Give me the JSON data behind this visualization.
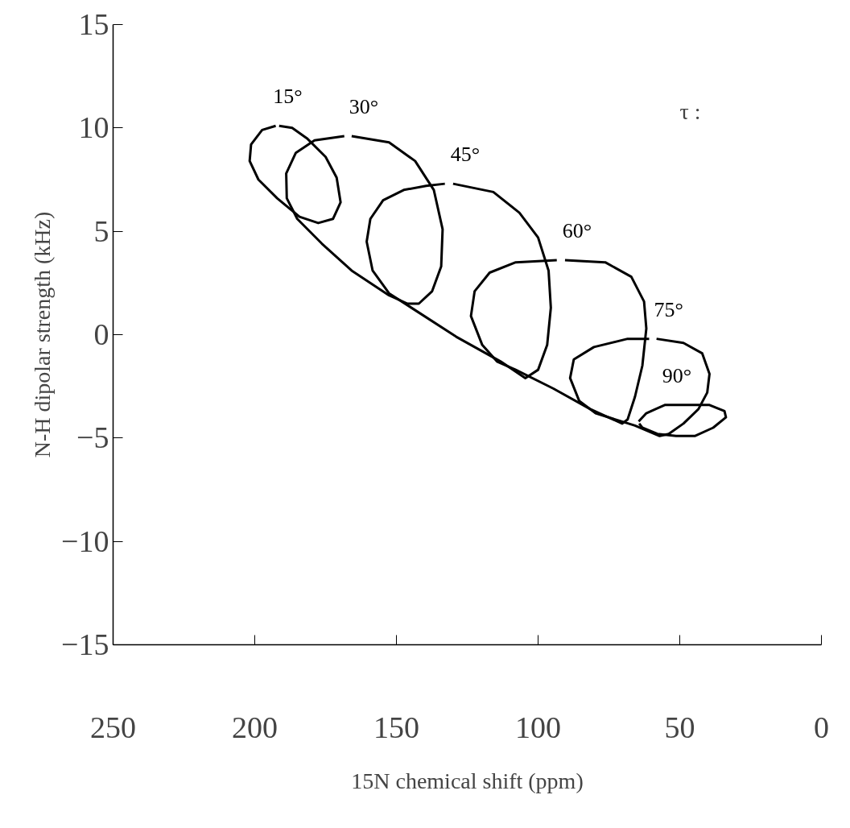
{
  "chart_data": {
    "type": "line",
    "xlabel": "15N chemical shift (ppm)",
    "ylabel": "N-H dipolar strength (kHz)",
    "xlim": [
      250,
      0
    ],
    "ylim": [
      -15,
      15
    ],
    "xticks": [
      250,
      200,
      150,
      100,
      50,
      0
    ],
    "yticks": [
      -15,
      -10,
      -5,
      0,
      5,
      10,
      15
    ],
    "grid": false,
    "series": [
      {
        "name": "15°",
        "color": "#000000",
        "x": [
          192.6,
          197.4,
          201.3,
          201.8,
          198.7,
          192.1,
          184.2,
          177.6,
          172.4,
          169.7,
          171.1,
          175.0,
          181.6,
          186.8,
          191.4
        ],
        "values": [
          10.1,
          9.9,
          9.2,
          8.4,
          7.5,
          6.6,
          5.7,
          5.4,
          5.6,
          6.4,
          7.6,
          8.6,
          9.5,
          10.0,
          10.1
        ]
      },
      {
        "name": "30°",
        "color": "#000000",
        "x": [
          165.8,
          152.6,
          143.4,
          136.8,
          133.7,
          134.2,
          137.4,
          142.1,
          146.1,
          152.6,
          165.8,
          176.3,
          185.0,
          188.7,
          188.9,
          185.5,
          178.9,
          168.4
        ],
        "values": [
          9.6,
          9.3,
          8.4,
          7.0,
          5.1,
          3.3,
          2.1,
          1.5,
          1.5,
          1.9,
          3.1,
          4.4,
          5.6,
          6.6,
          7.8,
          8.8,
          9.4,
          9.6
        ]
      },
      {
        "name": "45°",
        "color": "#000000",
        "x": [
          130.0,
          115.8,
          106.6,
          100.0,
          96.3,
          95.5,
          96.8,
          100.0,
          104.5,
          113.2,
          128.9,
          144.7,
          152.6,
          158.4,
          160.5,
          159.2,
          154.7,
          147.4,
          139.5,
          132.9
        ],
        "values": [
          7.3,
          6.9,
          5.9,
          4.7,
          3.1,
          1.3,
          -0.5,
          -1.7,
          -2.1,
          -1.3,
          -0.1,
          1.3,
          2.0,
          3.1,
          4.5,
          5.6,
          6.5,
          7.0,
          7.2,
          7.3
        ]
      },
      {
        "name": "60°",
        "color": "#000000",
        "x": [
          90.5,
          76.3,
          67.1,
          62.6,
          61.8,
          63.2,
          65.8,
          68.4,
          70.3,
          81.6,
          94.7,
          107.9,
          114.5,
          119.7,
          123.7,
          122.4,
          117.1,
          107.9,
          93.4
        ],
        "values": [
          3.6,
          3.5,
          2.8,
          1.6,
          0.3,
          -1.5,
          -3.0,
          -4.1,
          -4.3,
          -3.6,
          -2.6,
          -1.7,
          -1.3,
          -0.5,
          0.9,
          2.1,
          3.0,
          3.5,
          3.6
        ]
      },
      {
        "name": "75°",
        "color": "#000000",
        "x": [
          58.2,
          48.7,
          42.1,
          39.5,
          40.3,
          43.4,
          48.7,
          53.9,
          57.1,
          65.8,
          79.7,
          85.5,
          88.7,
          87.4,
          80.3,
          68.4,
          60.8
        ],
        "values": [
          -0.2,
          -0.4,
          -0.9,
          -1.9,
          -2.8,
          -3.6,
          -4.3,
          -4.8,
          -4.9,
          -4.4,
          -3.8,
          -3.2,
          -2.1,
          -1.2,
          -0.6,
          -0.2,
          -0.2
        ]
      },
      {
        "name": "90°",
        "color": "#000000",
        "x": [
          64.5,
          61.8,
          55.3,
          48.2,
          39.5,
          34.2,
          33.7,
          38.2,
          44.7,
          51.3,
          57.9,
          63.2,
          64.3
        ],
        "values": [
          -4.2,
          -3.8,
          -3.4,
          -3.4,
          -3.4,
          -3.7,
          -4.0,
          -4.5,
          -4.9,
          -4.9,
          -4.8,
          -4.5,
          -4.3
        ]
      }
    ],
    "legend": false,
    "annotations": [
      "τ :"
    ]
  }
}
